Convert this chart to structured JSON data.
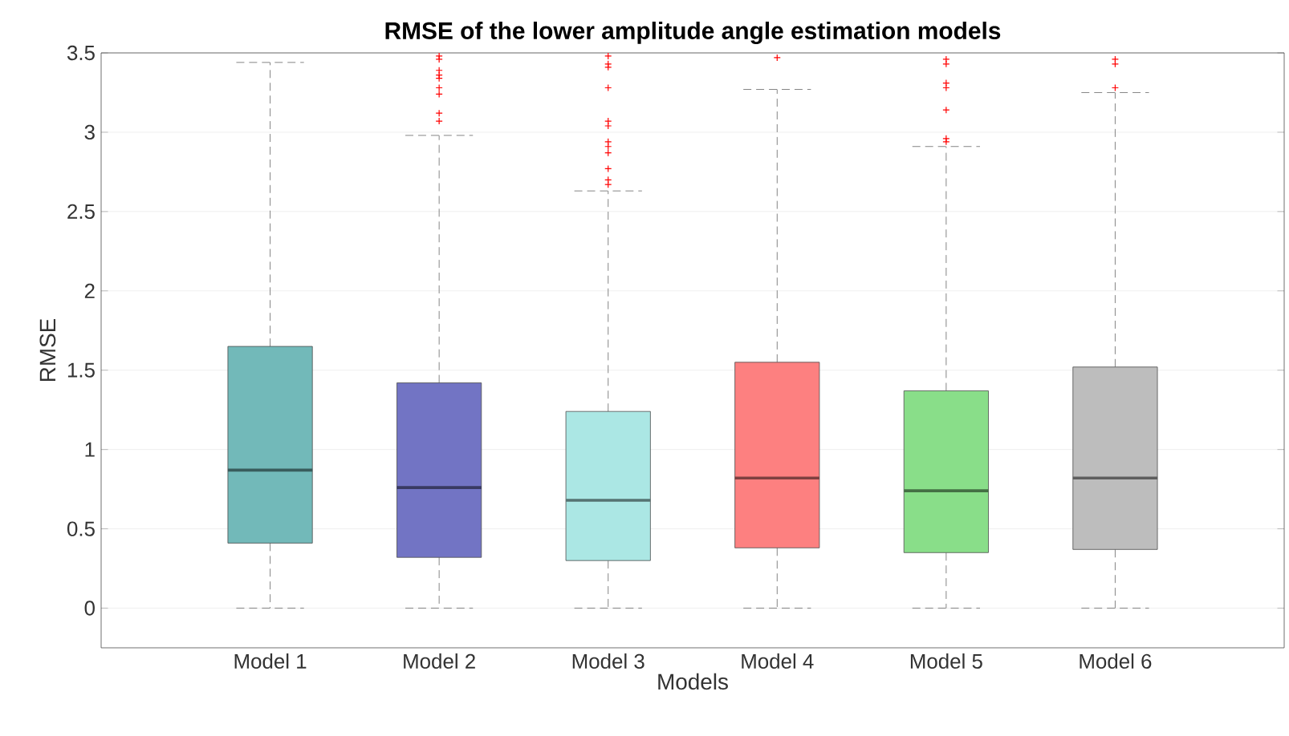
{
  "chart_data": {
    "type": "box",
    "title": "RMSE of the lower amplitude angle estimation models",
    "xlabel": "Models",
    "ylabel": "RMSE",
    "categories": [
      "Model 1",
      "Model 2",
      "Model 3",
      "Model 4",
      "Model 5",
      "Model 6"
    ],
    "colors": [
      "#72b9b9",
      "#7274c4",
      "#abe7e4",
      "#fd8080",
      "#89de89",
      "#bdbdbd"
    ],
    "boxes": [
      {
        "low": 0,
        "q1": 0.41,
        "median": 0.87,
        "q3": 1.65,
        "high": 3.44
      },
      {
        "low": 0,
        "q1": 0.32,
        "median": 0.76,
        "q3": 1.42,
        "high": 2.98,
        "outliers": [
          3.48,
          3.46,
          3.39,
          3.36,
          3.34,
          3.28,
          3.24,
          3.12,
          3.07
        ]
      },
      {
        "low": 0,
        "q1": 0.3,
        "median": 0.68,
        "q3": 1.24,
        "high": 2.63,
        "outliers": [
          3.48,
          3.43,
          3.41,
          3.28,
          3.07,
          3.04,
          2.94,
          2.91,
          2.87,
          2.77,
          2.7,
          2.67
        ]
      },
      {
        "low": 0,
        "q1": 0.38,
        "median": 0.82,
        "q3": 1.55,
        "high": 3.27,
        "outliers": [
          3.47
        ]
      },
      {
        "low": 0,
        "q1": 0.35,
        "median": 0.74,
        "q3": 1.37,
        "high": 2.91,
        "outliers": [
          3.46,
          3.43,
          3.31,
          3.28,
          3.14,
          2.96,
          2.94
        ]
      },
      {
        "low": 0,
        "q1": 0.37,
        "median": 0.82,
        "q3": 1.52,
        "high": 3.25,
        "outliers": [
          3.46,
          3.43,
          3.28
        ]
      }
    ],
    "ylim": [
      -0.25,
      3.5
    ],
    "yticks": [
      0,
      0.5,
      1,
      1.5,
      2,
      2.5,
      3,
      3.5
    ],
    "grid": "y",
    "marker": "cross"
  }
}
